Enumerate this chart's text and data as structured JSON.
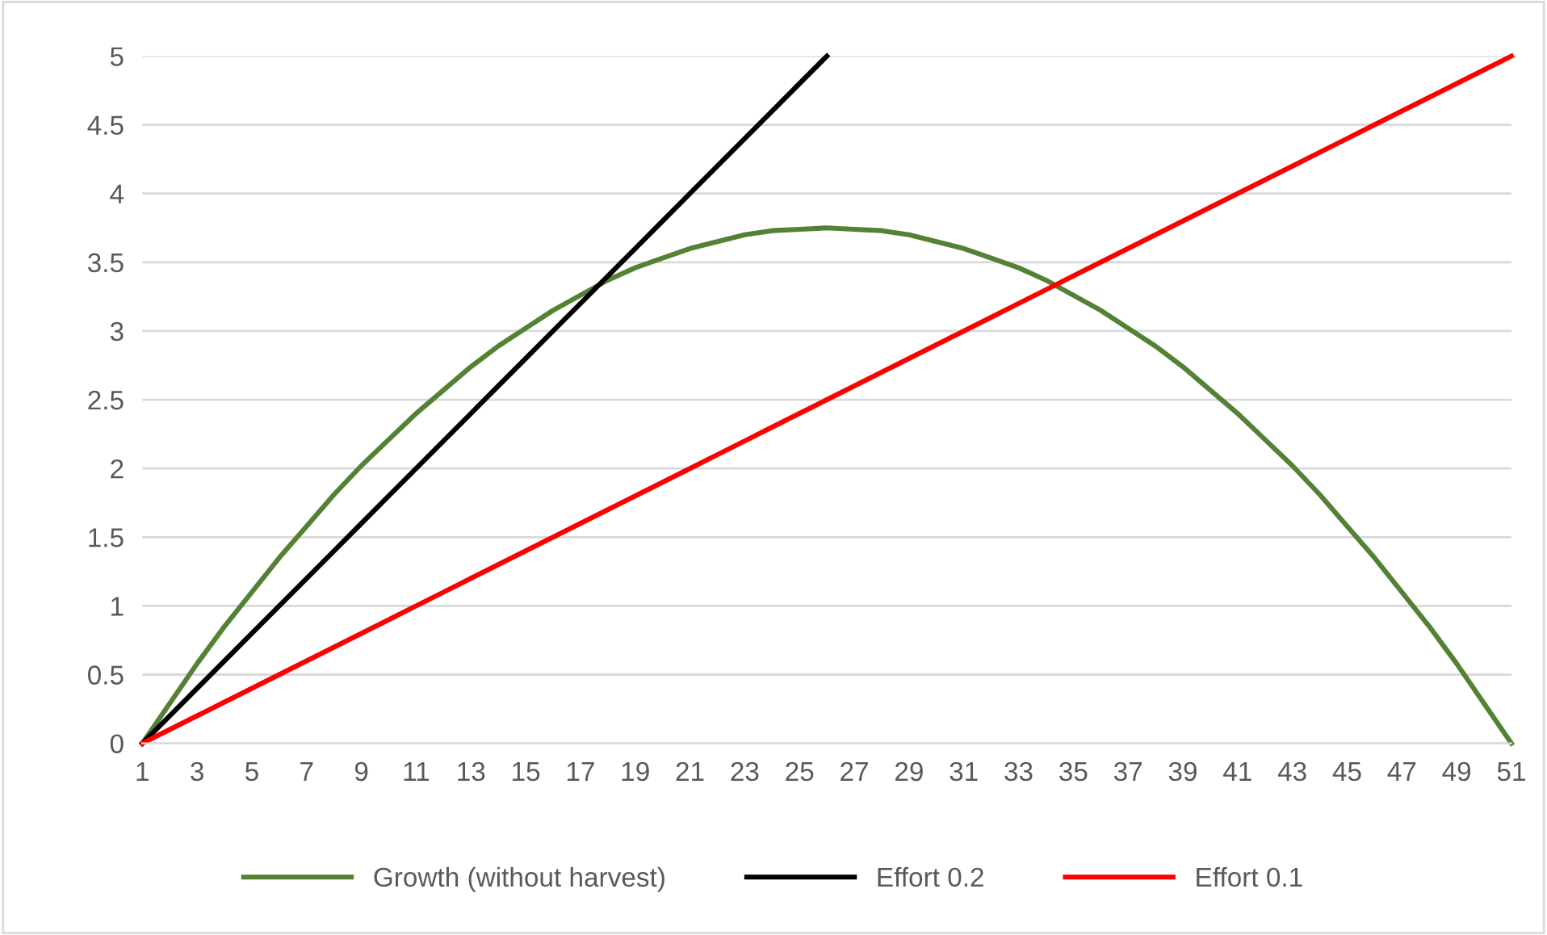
{
  "chart_data": {
    "type": "line",
    "categories": [
      "1",
      null,
      "3",
      null,
      "5",
      null,
      "7",
      null,
      "9",
      null,
      "11",
      null,
      "13",
      null,
      "15",
      null,
      "17",
      null,
      "19",
      null,
      "21",
      null,
      "23",
      null,
      "25",
      null,
      "27",
      null,
      "29",
      null,
      "31",
      null,
      "33",
      null,
      "35",
      null,
      "37",
      null,
      "39",
      null,
      "41",
      null,
      "43",
      null,
      "45",
      null,
      "47",
      null,
      "49",
      null,
      "51"
    ],
    "series": [
      {
        "name": "Growth (without harvest)",
        "color": "#548235",
        "values": [
          0,
          0.29,
          0.58,
          0.85,
          1.1,
          1.35,
          1.58,
          1.81,
          2.02,
          2.21,
          2.4,
          2.57,
          2.74,
          2.89,
          3.02,
          3.15,
          3.26,
          3.37,
          3.46,
          3.53,
          3.6,
          3.65,
          3.7,
          3.73,
          3.74,
          3.75,
          3.74,
          3.73,
          3.7,
          3.65,
          3.6,
          3.53,
          3.46,
          3.37,
          3.26,
          3.15,
          3.02,
          2.89,
          2.74,
          2.57,
          2.4,
          2.21,
          2.02,
          1.81,
          1.58,
          1.35,
          1.1,
          0.85,
          0.58,
          0.29,
          0
        ]
      },
      {
        "name": "Effort 0.2",
        "color": "#000000",
        "values": [
          0,
          0.2,
          0.4,
          0.6,
          0.8,
          1.0,
          1.2,
          1.4,
          1.6,
          1.8,
          2.0,
          2.2,
          2.4,
          2.6,
          2.8,
          3.0,
          3.2,
          3.4,
          3.6,
          3.8,
          4.0,
          4.2,
          4.4,
          4.6,
          4.8,
          5.0,
          null,
          null,
          null,
          null,
          null,
          null,
          null,
          null,
          null,
          null,
          null,
          null,
          null,
          null,
          null,
          null,
          null,
          null,
          null,
          null,
          null,
          null,
          null,
          null,
          null
        ]
      },
      {
        "name": "Effort 0.1",
        "color": "#ff0000",
        "values": [
          0,
          0.1,
          0.2,
          0.3,
          0.4,
          0.5,
          0.6,
          0.7,
          0.8,
          0.9,
          1.0,
          1.1,
          1.2,
          1.3,
          1.4,
          1.5,
          1.6,
          1.7,
          1.8,
          1.9,
          2.0,
          2.1,
          2.2,
          2.3,
          2.4,
          2.5,
          2.6,
          2.7,
          2.8,
          2.9,
          3.0,
          3.1,
          3.2,
          3.3,
          3.4,
          3.5,
          3.6,
          3.7,
          3.8,
          3.9,
          4.0,
          4.1,
          4.2,
          4.3,
          4.4,
          4.5,
          4.6,
          4.7,
          4.8,
          4.9,
          5.0
        ]
      }
    ],
    "ylim": [
      0,
      5
    ],
    "yticks": [
      0,
      0.5,
      1,
      1.5,
      2,
      2.5,
      3,
      3.5,
      4,
      4.5,
      5
    ],
    "grid": "y",
    "legend": "bottom",
    "marker": "none",
    "line_style": "solid"
  }
}
